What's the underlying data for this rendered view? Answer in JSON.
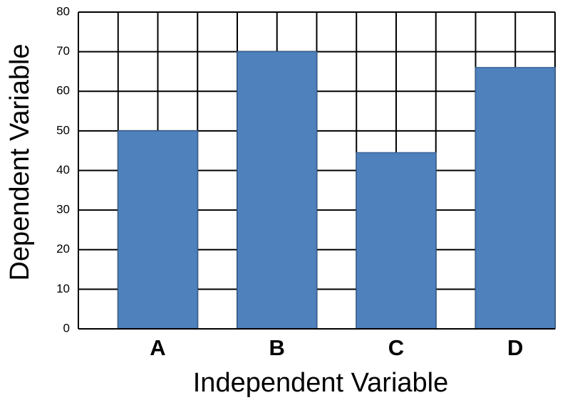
{
  "chart_data": {
    "type": "bar",
    "x_label": "Independent Variable",
    "y_label": "Dependent Variable",
    "categories": [
      "A",
      "B",
      "C",
      "D"
    ],
    "values": [
      50,
      70,
      44.5,
      66
    ],
    "color": "#4f81bd",
    "ylim": [
      0,
      80
    ],
    "yticks": [
      0,
      10,
      20,
      30,
      40,
      50,
      60,
      70,
      80
    ],
    "grid": true
  }
}
